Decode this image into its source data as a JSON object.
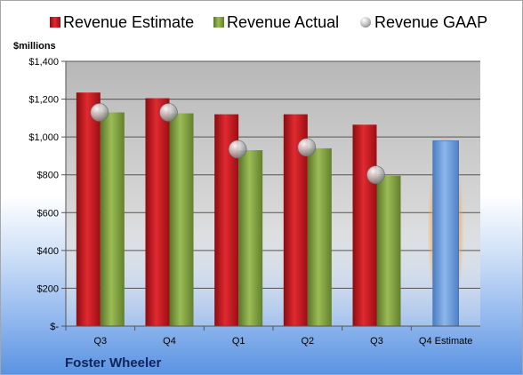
{
  "chart_data": {
    "type": "bar",
    "company": "Foster Wheeler",
    "ylabel": "$millions",
    "ylim": [
      0,
      1400
    ],
    "yticks": [
      0,
      200,
      400,
      600,
      800,
      1000,
      1200,
      1400
    ],
    "ytick_labels": [
      "$-",
      "$200",
      "$400",
      "$600",
      "$800",
      "$1,000",
      "$1,200",
      "$1,400"
    ],
    "categories": [
      "Q3",
      "Q4",
      "Q1",
      "Q2",
      "Q3",
      "Q4 Estimate"
    ],
    "grid": true,
    "legend_position": "top",
    "series": [
      {
        "name": "Revenue Estimate",
        "kind": "bar",
        "color": "#c0141b",
        "values": [
          1235,
          1205,
          1120,
          1120,
          1065,
          null
        ]
      },
      {
        "name": "Revenue Actual",
        "kind": "bar",
        "color": "#7c9a3c",
        "values": [
          1130,
          1125,
          930,
          940,
          795,
          null
        ]
      },
      {
        "name": "Revenue GAAP",
        "kind": "marker",
        "color": "#b8b8b8",
        "values": [
          1130,
          1130,
          935,
          945,
          800,
          null
        ]
      }
    ],
    "highlight": {
      "category_index": 5,
      "value": 980,
      "color": "#6f9fdd",
      "glow": "#f5a146"
    }
  }
}
